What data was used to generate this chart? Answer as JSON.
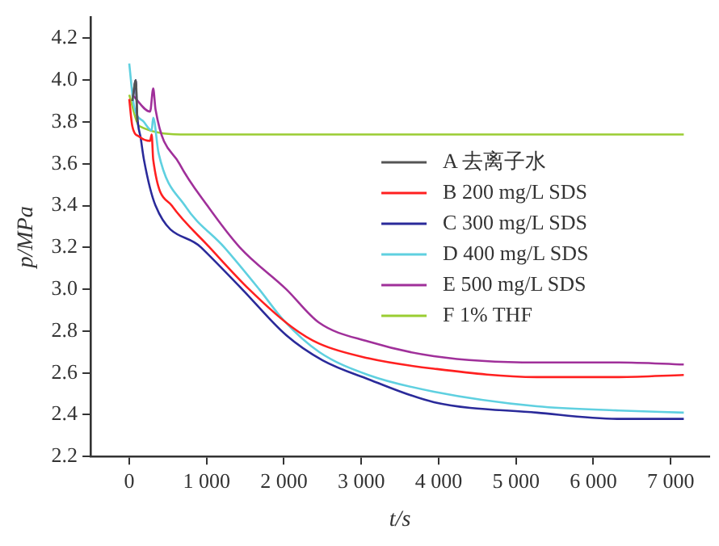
{
  "chart_data": {
    "type": "line",
    "xlabel": "t/s",
    "ylabel": "p/MPa",
    "xlim": [
      -500,
      7500
    ],
    "xticks": [
      0,
      {
        "value": 1000,
        "label": "1 000"
      },
      {
        "value": 2000,
        "label": "2 000"
      },
      {
        "value": 3000,
        "label": "3 000"
      },
      {
        "value": 4000,
        "label": "4 000"
      },
      {
        "value": 5000,
        "label": "5 000"
      },
      {
        "value": 6000,
        "label": "6 000"
      },
      {
        "value": 7000,
        "label": "7 000"
      }
    ],
    "ylim": [
      2.2,
      4.3
    ],
    "yticks": [
      2.2,
      2.4,
      2.6,
      2.8,
      {
        "value": 3,
        "label": "3.0"
      },
      3.2,
      3.4,
      3.6,
      3.8,
      {
        "value": 4,
        "label": "4.0"
      },
      4.2
    ],
    "grid": false,
    "legend": "center",
    "marker": "none",
    "line_style": "solid",
    "series": [
      {
        "name": "A 去离子水",
        "color": "#555555",
        "x": [
          40,
          85,
          105
        ],
        "values": [
          3.9,
          4.0,
          3.8
        ]
      },
      {
        "name": "B 200 mg/L SDS",
        "color": "#ff2020",
        "x": [
          0,
          40,
          130,
          270,
          290,
          310,
          550,
          1040,
          1550,
          2100,
          2455,
          3090,
          3940,
          5270,
          6330,
          7170
        ],
        "values": [
          3.91,
          3.78,
          3.73,
          3.71,
          3.74,
          3.62,
          3.4,
          3.2,
          3.0,
          2.82,
          2.74,
          2.67,
          2.62,
          2.58,
          2.58,
          2.59
        ]
      },
      {
        "name": "C 300 mg/L SDS",
        "color": "#2a2a9a",
        "x": [
          50,
          85,
          100,
          150,
          190,
          340,
          930,
          1460,
          2030,
          2500,
          3090,
          3940,
          5270,
          6330,
          7170
        ],
        "values": [
          3.92,
          4.0,
          3.85,
          3.72,
          3.62,
          3.4,
          3.2,
          3.0,
          2.78,
          2.66,
          2.57,
          2.46,
          2.41,
          2.38,
          2.38
        ]
      },
      {
        "name": "D 400 mg/L SDS",
        "color": "#5fd0e0",
        "x": [
          0,
          60,
          190,
          290,
          310,
          380,
          720,
          1230,
          1680,
          2000,
          2455,
          3090,
          3940,
          5270,
          6330,
          7170
        ],
        "values": [
          4.08,
          3.88,
          3.8,
          3.76,
          3.82,
          3.65,
          3.4,
          3.2,
          3.0,
          2.85,
          2.7,
          2.59,
          2.51,
          2.44,
          2.42,
          2.41
        ]
      },
      {
        "name": "E 500 mg/L SDS",
        "color": "#a0309a",
        "x": [
          40,
          270,
          310,
          340,
          650,
          1010,
          1430,
          2030,
          2455,
          3090,
          3940,
          5270,
          6330,
          7170
        ],
        "values": [
          3.93,
          3.85,
          3.96,
          3.86,
          3.6,
          3.4,
          3.2,
          3.0,
          2.84,
          2.75,
          2.68,
          2.65,
          2.65,
          2.64
        ]
      },
      {
        "name": "F 1% THF",
        "color": "#9acd32",
        "x": [
          0,
          130,
          760,
          3000,
          5000,
          7170
        ],
        "values": [
          3.93,
          3.78,
          3.74,
          3.74,
          3.74,
          3.74
        ]
      }
    ]
  }
}
